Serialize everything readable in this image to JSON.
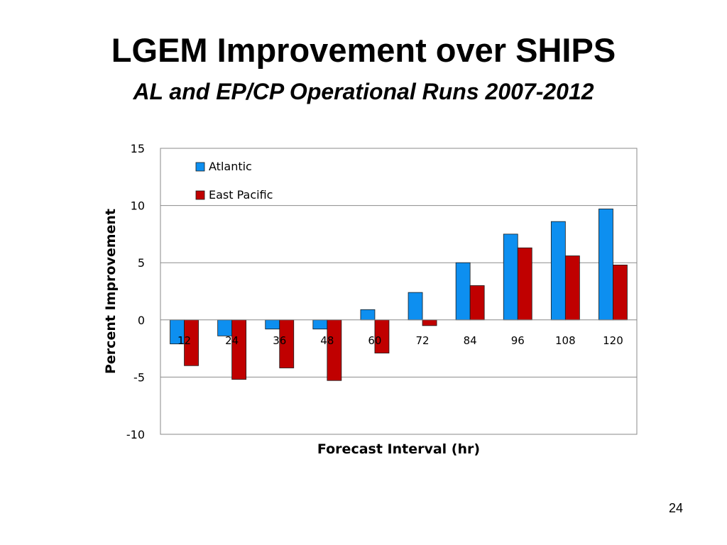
{
  "slide": {
    "title": "LGEM Improvement over SHIPS",
    "subtitle": "AL and EP/CP Operational Runs 2007-2012",
    "page_number": "24"
  },
  "chart_data": {
    "type": "bar",
    "title": "",
    "xlabel": "Forecast Interval (hr)",
    "ylabel": "Percent Improvement",
    "ylim": [
      -10,
      15
    ],
    "yticks": [
      15,
      10,
      5,
      0,
      -5,
      -10
    ],
    "grid": true,
    "legend_position": "top-left",
    "categories": [
      "12",
      "24",
      "36",
      "48",
      "60",
      "72",
      "84",
      "96",
      "108",
      "120"
    ],
    "series": [
      {
        "name": "Atlantic",
        "color": "#0d8ff0",
        "values": [
          -2.1,
          -1.4,
          -0.8,
          -0.8,
          0.9,
          2.4,
          5.0,
          7.5,
          8.6,
          9.7
        ]
      },
      {
        "name": "East Pacific",
        "color": "#c00000",
        "values": [
          -4.0,
          -5.2,
          -4.2,
          -5.3,
          -2.9,
          -0.5,
          3.0,
          6.3,
          5.6,
          4.8
        ]
      }
    ]
  }
}
